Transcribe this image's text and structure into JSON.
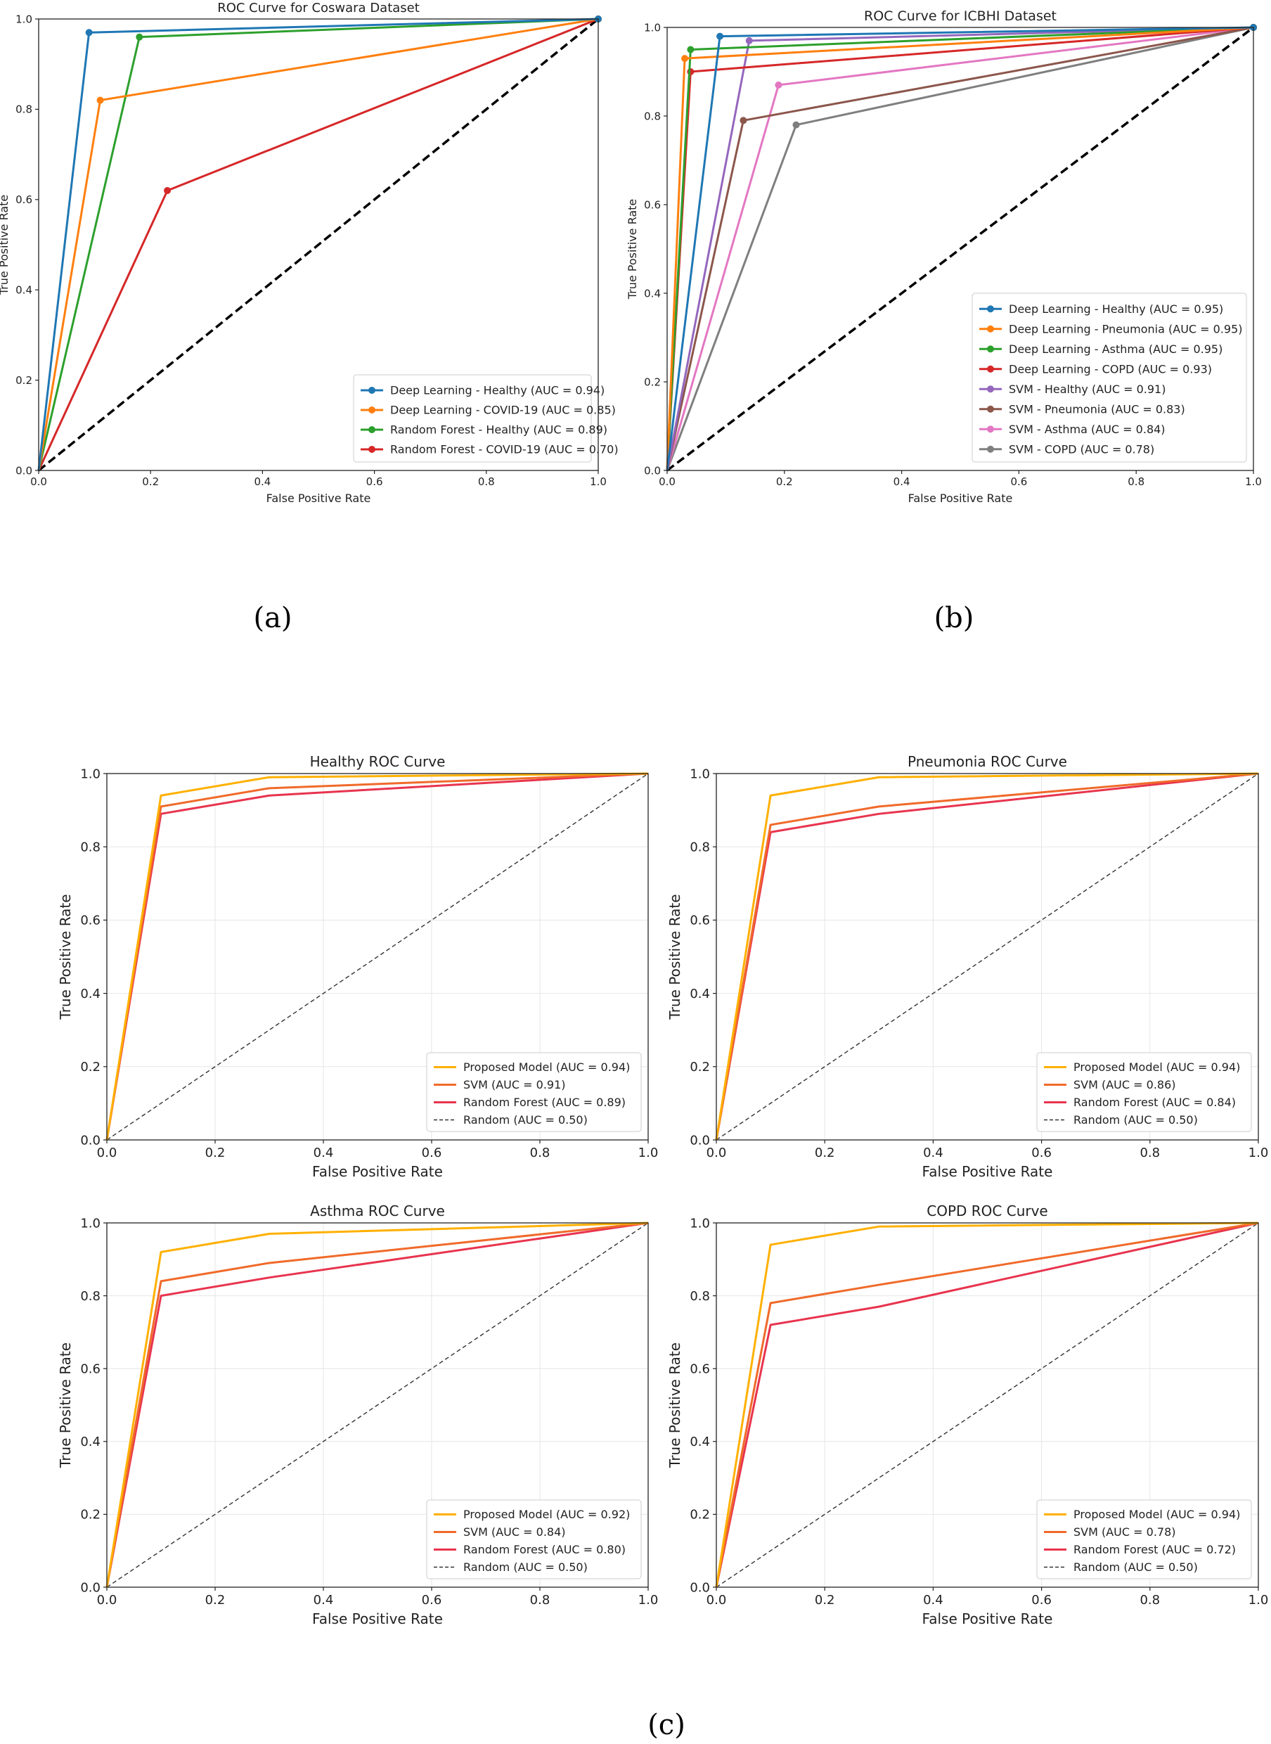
{
  "panel_labels": {
    "a": "(a)",
    "b": "(b)",
    "c": "(c)"
  },
  "chart_data": [
    {
      "id": "coswara",
      "type": "line",
      "style": "marker",
      "title": "ROC Curve for Coswara Dataset",
      "xlabel": "False Positive Rate",
      "ylabel": "True Positive Rate",
      "xlim": [
        0,
        1
      ],
      "ylim": [
        0,
        1
      ],
      "xticks": [
        "0.0",
        "0.2",
        "0.4",
        "0.6",
        "0.8",
        "1.0"
      ],
      "yticks": [
        "0.0",
        "0.2",
        "0.4",
        "0.6",
        "0.8",
        "1.0"
      ],
      "grid": false,
      "legend_position": "bottom-right",
      "diagonal": {
        "label": "",
        "style": "bold-dashed"
      },
      "series": [
        {
          "name": "Deep Learning - Healthy (AUC = 0.94)",
          "color": "#1f77b4",
          "x": [
            0,
            0.09,
            1
          ],
          "y": [
            0,
            0.97,
            1
          ]
        },
        {
          "name": "Deep Learning - COVID-19 (AUC = 0.85)",
          "color": "#ff7f0e",
          "x": [
            0,
            0.11,
            1
          ],
          "y": [
            0,
            0.82,
            1
          ]
        },
        {
          "name": "Random Forest - Healthy (AUC = 0.89)",
          "color": "#2ca02c",
          "x": [
            0,
            0.18,
            1
          ],
          "y": [
            0,
            0.96,
            1
          ]
        },
        {
          "name": "Random Forest - COVID-19 (AUC = 0.70)",
          "color": "#d62728",
          "x": [
            0,
            0.23,
            1
          ],
          "y": [
            0,
            0.62,
            1
          ]
        }
      ]
    },
    {
      "id": "icbhi",
      "type": "line",
      "style": "marker",
      "title": "ROC Curve for ICBHI Dataset",
      "xlabel": "False Positive Rate",
      "ylabel": "True Positive Rate",
      "xlim": [
        0,
        1
      ],
      "ylim": [
        0,
        1
      ],
      "xticks": [
        "0.0",
        "0.2",
        "0.4",
        "0.6",
        "0.8",
        "1.0"
      ],
      "yticks": [
        "0.0",
        "0.2",
        "0.4",
        "0.6",
        "0.8",
        "1.0"
      ],
      "grid": false,
      "legend_position": "bottom-right",
      "diagonal": {
        "label": "",
        "style": "bold-dashed"
      },
      "series": [
        {
          "name": "Deep Learning - Healthy (AUC = 0.95)",
          "color": "#1f77b4",
          "x": [
            0,
            0.09,
            1
          ],
          "y": [
            0,
            0.98,
            1
          ]
        },
        {
          "name": "Deep Learning - Pneumonia (AUC = 0.95)",
          "color": "#ff7f0e",
          "x": [
            0,
            0.03,
            1
          ],
          "y": [
            0,
            0.93,
            1
          ]
        },
        {
          "name": "Deep Learning - Asthma (AUC = 0.95)",
          "color": "#2ca02c",
          "x": [
            0,
            0.04,
            1
          ],
          "y": [
            0,
            0.95,
            1
          ]
        },
        {
          "name": "Deep Learning - COPD (AUC = 0.93)",
          "color": "#d62728",
          "x": [
            0,
            0.04,
            1
          ],
          "y": [
            0,
            0.9,
            1
          ]
        },
        {
          "name": "SVM - Healthy (AUC = 0.91)",
          "color": "#9467bd",
          "x": [
            0,
            0.14,
            1
          ],
          "y": [
            0,
            0.97,
            1
          ]
        },
        {
          "name": "SVM - Pneumonia (AUC = 0.83)",
          "color": "#8c564b",
          "x": [
            0,
            0.13,
            1
          ],
          "y": [
            0,
            0.79,
            1
          ]
        },
        {
          "name": "SVM - Asthma (AUC = 0.84)",
          "color": "#e377c2",
          "x": [
            0,
            0.19,
            1
          ],
          "y": [
            0,
            0.87,
            1
          ]
        },
        {
          "name": "SVM - COPD (AUC = 0.78)",
          "color": "#7f7f7f",
          "x": [
            0,
            0.22,
            1
          ],
          "y": [
            0,
            0.78,
            1
          ]
        }
      ]
    },
    {
      "id": "healthy",
      "type": "line",
      "style": "plain",
      "title": "Healthy ROC Curve",
      "xlabel": "False Positive Rate",
      "ylabel": "True Positive Rate",
      "xlim": [
        0,
        1
      ],
      "ylim": [
        0,
        1
      ],
      "xticks": [
        "0.0",
        "0.2",
        "0.4",
        "0.6",
        "0.8",
        "1.0"
      ],
      "yticks": [
        "0.0",
        "0.2",
        "0.4",
        "0.6",
        "0.8",
        "1.0"
      ],
      "grid": true,
      "legend_position": "bottom-right",
      "diagonal": {
        "label": "Random (AUC = 0.50)",
        "style": "thin-dashed"
      },
      "series": [
        {
          "name": "Proposed Model (AUC = 0.94)",
          "color": "#ffb000",
          "x": [
            0,
            0.1,
            0.3,
            1
          ],
          "y": [
            0,
            0.94,
            0.99,
            1
          ]
        },
        {
          "name": "SVM (AUC = 0.91)",
          "color": "#f06a2a",
          "x": [
            0,
            0.1,
            0.3,
            1
          ],
          "y": [
            0,
            0.91,
            0.96,
            1
          ]
        },
        {
          "name": "Random Forest (AUC = 0.89)",
          "color": "#e8344e",
          "x": [
            0,
            0.1,
            0.3,
            1
          ],
          "y": [
            0,
            0.89,
            0.94,
            1
          ]
        }
      ]
    },
    {
      "id": "pneumonia",
      "type": "line",
      "style": "plain",
      "title": "Pneumonia ROC Curve",
      "xlabel": "False Positive Rate",
      "ylabel": "True Positive Rate",
      "xlim": [
        0,
        1
      ],
      "ylim": [
        0,
        1
      ],
      "xticks": [
        "0.0",
        "0.2",
        "0.4",
        "0.6",
        "0.8",
        "1.0"
      ],
      "yticks": [
        "0.0",
        "0.2",
        "0.4",
        "0.6",
        "0.8",
        "1.0"
      ],
      "grid": true,
      "legend_position": "bottom-right",
      "diagonal": {
        "label": "Random (AUC = 0.50)",
        "style": "thin-dashed"
      },
      "series": [
        {
          "name": "Proposed Model (AUC = 0.94)",
          "color": "#ffb000",
          "x": [
            0,
            0.1,
            0.3,
            1
          ],
          "y": [
            0,
            0.94,
            0.99,
            1
          ]
        },
        {
          "name": "SVM (AUC = 0.86)",
          "color": "#f06a2a",
          "x": [
            0,
            0.1,
            0.3,
            1
          ],
          "y": [
            0,
            0.86,
            0.91,
            1
          ]
        },
        {
          "name": "Random Forest (AUC = 0.84)",
          "color": "#e8344e",
          "x": [
            0,
            0.1,
            0.3,
            1
          ],
          "y": [
            0,
            0.84,
            0.89,
            1
          ]
        }
      ]
    },
    {
      "id": "asthma",
      "type": "line",
      "style": "plain",
      "title": "Asthma ROC Curve",
      "xlabel": "False Positive Rate",
      "ylabel": "True Positive Rate",
      "xlim": [
        0,
        1
      ],
      "ylim": [
        0,
        1
      ],
      "xticks": [
        "0.0",
        "0.2",
        "0.4",
        "0.6",
        "0.8",
        "1.0"
      ],
      "yticks": [
        "0.0",
        "0.2",
        "0.4",
        "0.6",
        "0.8",
        "1.0"
      ],
      "grid": true,
      "legend_position": "bottom-right",
      "diagonal": {
        "label": "Random (AUC = 0.50)",
        "style": "thin-dashed"
      },
      "series": [
        {
          "name": "Proposed Model (AUC = 0.92)",
          "color": "#ffb000",
          "x": [
            0,
            0.1,
            0.3,
            1
          ],
          "y": [
            0,
            0.92,
            0.97,
            1
          ]
        },
        {
          "name": "SVM (AUC = 0.84)",
          "color": "#f06a2a",
          "x": [
            0,
            0.1,
            0.3,
            1
          ],
          "y": [
            0,
            0.84,
            0.89,
            1
          ]
        },
        {
          "name": "Random Forest (AUC = 0.80)",
          "color": "#e8344e",
          "x": [
            0,
            0.1,
            0.3,
            1
          ],
          "y": [
            0,
            0.8,
            0.85,
            1
          ]
        }
      ]
    },
    {
      "id": "copd",
      "type": "line",
      "style": "plain",
      "title": "COPD ROC Curve",
      "xlabel": "False Positive Rate",
      "ylabel": "True Positive Rate",
      "xlim": [
        0,
        1
      ],
      "ylim": [
        0,
        1
      ],
      "xticks": [
        "0.0",
        "0.2",
        "0.4",
        "0.6",
        "0.8",
        "1.0"
      ],
      "yticks": [
        "0.0",
        "0.2",
        "0.4",
        "0.6",
        "0.8",
        "1.0"
      ],
      "grid": true,
      "legend_position": "bottom-right",
      "diagonal": {
        "label": "Random (AUC = 0.50)",
        "style": "thin-dashed"
      },
      "series": [
        {
          "name": "Proposed Model (AUC = 0.94)",
          "color": "#ffb000",
          "x": [
            0,
            0.1,
            0.3,
            1
          ],
          "y": [
            0,
            0.94,
            0.99,
            1
          ]
        },
        {
          "name": "SVM (AUC = 0.78)",
          "color": "#f06a2a",
          "x": [
            0,
            0.1,
            0.3,
            1
          ],
          "y": [
            0,
            0.78,
            0.83,
            1
          ]
        },
        {
          "name": "Random Forest (AUC = 0.72)",
          "color": "#e8344e",
          "x": [
            0,
            0.1,
            0.3,
            1
          ],
          "y": [
            0,
            0.72,
            0.77,
            1
          ]
        }
      ]
    }
  ]
}
